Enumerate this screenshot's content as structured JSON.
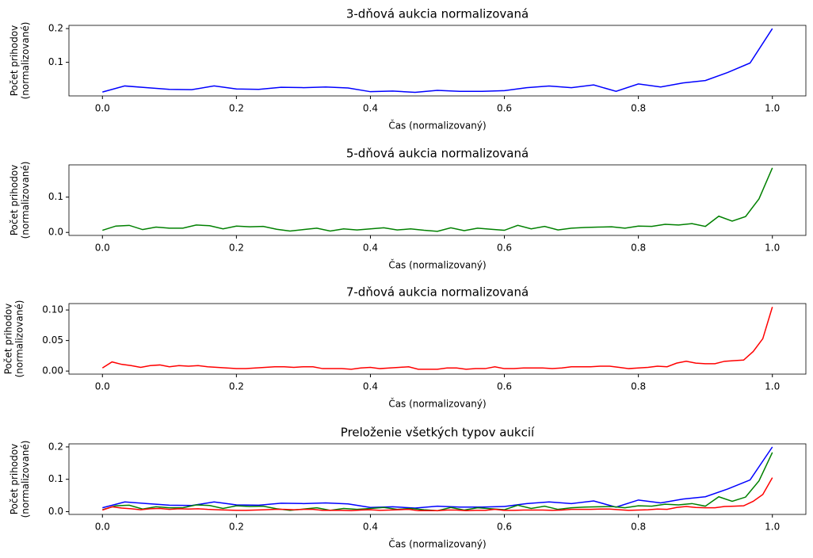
{
  "chart_data": [
    {
      "type": "line",
      "title": "3-dňová aukcia normalizovaná",
      "xlabel": "Čas (normalizovaný)",
      "ylabel": [
        "Počet prihodov",
        "(normalizované)"
      ],
      "xlim": [
        -0.05,
        1.05
      ],
      "xticks": [
        {
          "value": 0,
          "label": "0.0"
        },
        {
          "value": 0.2,
          "label": "0.2"
        },
        {
          "value": 0.4,
          "label": "0.4"
        },
        {
          "value": 0.6,
          "label": "0.6"
        },
        {
          "value": 0.8,
          "label": "0.8"
        },
        {
          "value": 1,
          "label": "1.0"
        }
      ],
      "ylim": [
        0.0005,
        0.2095
      ],
      "yticks": [
        0.1,
        0.2
      ],
      "series": [
        {
          "color": "#0000ff",
          "x": [
            0,
            0.0333,
            0.0667,
            0.1,
            0.1333,
            0.1667,
            0.2,
            0.2333,
            0.2667,
            0.3,
            0.3333,
            0.3667,
            0.4,
            0.4333,
            0.4667,
            0.5,
            0.5333,
            0.5667,
            0.6,
            0.6333,
            0.6667,
            0.7,
            0.7333,
            0.7667,
            0.8,
            0.8333,
            0.8667,
            0.9,
            0.9333,
            0.9667,
            1
          ],
          "values": [
            0.012,
            0.03,
            0.025,
            0.02,
            0.019,
            0.03,
            0.021,
            0.02,
            0.026,
            0.025,
            0.027,
            0.024,
            0.013,
            0.015,
            0.011,
            0.017,
            0.014,
            0.014,
            0.016,
            0.025,
            0.03,
            0.025,
            0.033,
            0.014,
            0.036,
            0.027,
            0.039,
            0.046,
            0.07,
            0.098,
            0.2
          ]
        }
      ]
    },
    {
      "type": "line",
      "title": "5-dňová aukcia normalizovaná",
      "xlabel": "Čas (normalizovaný)",
      "ylabel": [
        "Počet prihodov",
        "(normalizované)"
      ],
      "xlim": [
        -0.05,
        1.05
      ],
      "xticks": [
        {
          "value": 0,
          "label": "0.0"
        },
        {
          "value": 0.2,
          "label": "0.2"
        },
        {
          "value": 0.4,
          "label": "0.4"
        },
        {
          "value": 0.6,
          "label": "0.6"
        },
        {
          "value": 0.8,
          "label": "0.8"
        },
        {
          "value": 1,
          "label": "1.0"
        }
      ],
      "ylim": [
        -0.0085,
        0.1915
      ],
      "yticks": [
        {
          "value": 0,
          "label": "0.0"
        },
        0.1
      ],
      "series": [
        {
          "color": "#008000",
          "x": [
            0,
            0.02,
            0.04,
            0.06,
            0.08,
            0.1,
            0.12,
            0.14,
            0.16,
            0.18,
            0.2,
            0.22,
            0.24,
            0.26,
            0.28,
            0.3,
            0.32,
            0.34,
            0.36,
            0.38,
            0.4,
            0.42,
            0.44,
            0.46,
            0.48,
            0.5,
            0.52,
            0.54,
            0.56,
            0.58,
            0.6,
            0.62,
            0.64,
            0.66,
            0.68,
            0.7,
            0.72,
            0.74,
            0.76,
            0.78,
            0.8,
            0.82,
            0.84,
            0.86,
            0.88,
            0.9,
            0.92,
            0.94,
            0.96,
            0.98,
            1
          ],
          "values": [
            0.006,
            0.018,
            0.02,
            0.008,
            0.015,
            0.012,
            0.012,
            0.021,
            0.019,
            0.01,
            0.018,
            0.016,
            0.017,
            0.009,
            0.004,
            0.008,
            0.012,
            0.004,
            0.01,
            0.007,
            0.01,
            0.013,
            0.007,
            0.01,
            0.006,
            0.003,
            0.013,
            0.005,
            0.012,
            0.009,
            0.006,
            0.02,
            0.01,
            0.017,
            0.007,
            0.012,
            0.014,
            0.015,
            0.016,
            0.012,
            0.018,
            0.017,
            0.023,
            0.021,
            0.025,
            0.017,
            0.046,
            0.032,
            0.045,
            0.095,
            0.183
          ]
        }
      ]
    },
    {
      "type": "line",
      "title": "7-dňová aukcia normalizovaná",
      "xlabel": "Čas (normalizovaný)",
      "ylabel": [
        "Počet prihodov",
        "(normalizované)"
      ],
      "xlim": [
        -0.05,
        1.05
      ],
      "xticks": [
        {
          "value": 0,
          "label": "0.0"
        },
        {
          "value": 0.2,
          "label": "0.2"
        },
        {
          "value": 0.4,
          "label": "0.4"
        },
        {
          "value": 0.6,
          "label": "0.6"
        },
        {
          "value": 0.8,
          "label": "0.8"
        },
        {
          "value": 1,
          "label": "1.0"
        }
      ],
      "ylim": [
        -0.005,
        0.1105
      ],
      "yticks": [
        {
          "value": 0,
          "label": "0.00"
        },
        0.05,
        {
          "value": 0.1,
          "label": "0.10"
        }
      ],
      "series": [
        {
          "color": "#ff0000",
          "x": [
            0,
            0.0143,
            0.0286,
            0.0429,
            0.0571,
            0.0714,
            0.0857,
            0.1,
            0.1143,
            0.1286,
            0.1429,
            0.1571,
            0.1714,
            0.1857,
            0.2,
            0.2143,
            0.2286,
            0.2429,
            0.2571,
            0.2714,
            0.2857,
            0.3,
            0.3143,
            0.3286,
            0.3429,
            0.3571,
            0.3714,
            0.3857,
            0.4,
            0.4143,
            0.4286,
            0.4429,
            0.4571,
            0.4714,
            0.4857,
            0.5,
            0.5143,
            0.5286,
            0.5429,
            0.5571,
            0.5714,
            0.5857,
            0.6,
            0.6143,
            0.6286,
            0.6429,
            0.6571,
            0.6714,
            0.6857,
            0.7,
            0.7143,
            0.7286,
            0.7429,
            0.7571,
            0.7714,
            0.7857,
            0.8,
            0.8143,
            0.8286,
            0.8429,
            0.8571,
            0.8714,
            0.8857,
            0.9,
            0.9143,
            0.9286,
            0.9429,
            0.9571,
            0.9714,
            0.9857,
            1
          ],
          "values": [
            0.005,
            0.015,
            0.011,
            0.009,
            0.006,
            0.009,
            0.01,
            0.007,
            0.009,
            0.008,
            0.009,
            0.007,
            0.006,
            0.005,
            0.004,
            0.004,
            0.005,
            0.006,
            0.007,
            0.007,
            0.006,
            0.007,
            0.007,
            0.004,
            0.004,
            0.004,
            0.003,
            0.005,
            0.006,
            0.004,
            0.005,
            0.006,
            0.007,
            0.003,
            0.003,
            0.003,
            0.005,
            0.005,
            0.003,
            0.004,
            0.004,
            0.007,
            0.004,
            0.004,
            0.005,
            0.005,
            0.005,
            0.004,
            0.005,
            0.007,
            0.007,
            0.007,
            0.008,
            0.008,
            0.006,
            0.004,
            0.005,
            0.006,
            0.008,
            0.007,
            0.013,
            0.016,
            0.013,
            0.012,
            0.012,
            0.016,
            0.017,
            0.018,
            0.032,
            0.053,
            0.105
          ]
        }
      ]
    },
    {
      "type": "line",
      "title": "Preloženie všetkých typov aukcií",
      "xlabel": "Čas (normalizovaný)",
      "ylabel": [
        "Počet prihodov",
        "(normalizované)"
      ],
      "xlim": [
        -0.05,
        1.05
      ],
      "xticks": [
        {
          "value": 0,
          "label": "0.0"
        },
        {
          "value": 0.2,
          "label": "0.2"
        },
        {
          "value": 0.4,
          "label": "0.4"
        },
        {
          "value": 0.6,
          "label": "0.6"
        },
        {
          "value": 0.8,
          "label": "0.8"
        },
        {
          "value": 1,
          "label": "1.0"
        }
      ],
      "ylim": [
        -0.0085,
        0.2095
      ],
      "yticks": [
        {
          "value": 0,
          "label": "0.0"
        },
        0.1,
        0.2
      ],
      "series": [
        {
          "color": "#0000ff",
          "x": [
            0,
            0.0333,
            0.0667,
            0.1,
            0.1333,
            0.1667,
            0.2,
            0.2333,
            0.2667,
            0.3,
            0.3333,
            0.3667,
            0.4,
            0.4333,
            0.4667,
            0.5,
            0.5333,
            0.5667,
            0.6,
            0.6333,
            0.6667,
            0.7,
            0.7333,
            0.7667,
            0.8,
            0.8333,
            0.8667,
            0.9,
            0.9333,
            0.9667,
            1
          ],
          "values": [
            0.012,
            0.03,
            0.025,
            0.02,
            0.019,
            0.03,
            0.021,
            0.02,
            0.026,
            0.025,
            0.027,
            0.024,
            0.013,
            0.015,
            0.011,
            0.017,
            0.014,
            0.014,
            0.016,
            0.025,
            0.03,
            0.025,
            0.033,
            0.014,
            0.036,
            0.027,
            0.039,
            0.046,
            0.07,
            0.098,
            0.2
          ]
        },
        {
          "color": "#008000",
          "x": [
            0,
            0.02,
            0.04,
            0.06,
            0.08,
            0.1,
            0.12,
            0.14,
            0.16,
            0.18,
            0.2,
            0.22,
            0.24,
            0.26,
            0.28,
            0.3,
            0.32,
            0.34,
            0.36,
            0.38,
            0.4,
            0.42,
            0.44,
            0.46,
            0.48,
            0.5,
            0.52,
            0.54,
            0.56,
            0.58,
            0.6,
            0.62,
            0.64,
            0.66,
            0.68,
            0.7,
            0.72,
            0.74,
            0.76,
            0.78,
            0.8,
            0.82,
            0.84,
            0.86,
            0.88,
            0.9,
            0.92,
            0.94,
            0.96,
            0.98,
            1
          ],
          "values": [
            0.006,
            0.018,
            0.02,
            0.008,
            0.015,
            0.012,
            0.012,
            0.021,
            0.019,
            0.01,
            0.018,
            0.016,
            0.017,
            0.009,
            0.004,
            0.008,
            0.012,
            0.004,
            0.01,
            0.007,
            0.01,
            0.013,
            0.007,
            0.01,
            0.006,
            0.003,
            0.013,
            0.005,
            0.012,
            0.009,
            0.006,
            0.02,
            0.01,
            0.017,
            0.007,
            0.012,
            0.014,
            0.015,
            0.016,
            0.012,
            0.018,
            0.017,
            0.023,
            0.021,
            0.025,
            0.017,
            0.046,
            0.032,
            0.045,
            0.095,
            0.183
          ]
        },
        {
          "color": "#ff0000",
          "x": [
            0,
            0.0143,
            0.0286,
            0.0429,
            0.0571,
            0.0714,
            0.0857,
            0.1,
            0.1143,
            0.1286,
            0.1429,
            0.1571,
            0.1714,
            0.1857,
            0.2,
            0.2143,
            0.2286,
            0.2429,
            0.2571,
            0.2714,
            0.2857,
            0.3,
            0.3143,
            0.3286,
            0.3429,
            0.3571,
            0.3714,
            0.3857,
            0.4,
            0.4143,
            0.4286,
            0.4429,
            0.4571,
            0.4714,
            0.4857,
            0.5,
            0.5143,
            0.5286,
            0.5429,
            0.5571,
            0.5714,
            0.5857,
            0.6,
            0.6143,
            0.6286,
            0.6429,
            0.6571,
            0.6714,
            0.6857,
            0.7,
            0.7143,
            0.7286,
            0.7429,
            0.7571,
            0.7714,
            0.7857,
            0.8,
            0.8143,
            0.8286,
            0.8429,
            0.8571,
            0.8714,
            0.8857,
            0.9,
            0.9143,
            0.9286,
            0.9429,
            0.9571,
            0.9714,
            0.9857,
            1
          ],
          "values": [
            0.005,
            0.015,
            0.011,
            0.009,
            0.006,
            0.009,
            0.01,
            0.007,
            0.009,
            0.008,
            0.009,
            0.007,
            0.006,
            0.005,
            0.004,
            0.004,
            0.005,
            0.006,
            0.007,
            0.007,
            0.006,
            0.007,
            0.007,
            0.004,
            0.004,
            0.004,
            0.003,
            0.005,
            0.006,
            0.004,
            0.005,
            0.006,
            0.007,
            0.003,
            0.003,
            0.003,
            0.005,
            0.005,
            0.003,
            0.004,
            0.004,
            0.007,
            0.004,
            0.004,
            0.005,
            0.005,
            0.005,
            0.004,
            0.005,
            0.007,
            0.007,
            0.007,
            0.008,
            0.008,
            0.006,
            0.004,
            0.005,
            0.006,
            0.008,
            0.007,
            0.013,
            0.016,
            0.013,
            0.012,
            0.012,
            0.016,
            0.017,
            0.018,
            0.032,
            0.053,
            0.105
          ]
        }
      ]
    }
  ]
}
